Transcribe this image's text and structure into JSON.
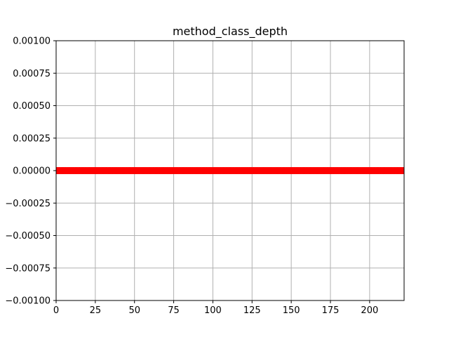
{
  "chart_data": {
    "type": "scatter",
    "title": "method_class_depth",
    "xlabel": "",
    "ylabel": "",
    "xlim": [
      0,
      222
    ],
    "ylim": [
      -0.001,
      0.001
    ],
    "x_ticks": [
      {
        "value": 0,
        "label": "0"
      },
      {
        "value": 25,
        "label": "25"
      },
      {
        "value": 50,
        "label": "50"
      },
      {
        "value": 75,
        "label": "75"
      },
      {
        "value": 100,
        "label": "100"
      },
      {
        "value": 125,
        "label": "125"
      },
      {
        "value": 150,
        "label": "150"
      },
      {
        "value": 175,
        "label": "175"
      },
      {
        "value": 200,
        "label": "200"
      }
    ],
    "y_ticks": [
      {
        "value": 0.001,
        "label": "0.00100"
      },
      {
        "value": 0.00075,
        "label": "0.00075"
      },
      {
        "value": 0.0005,
        "label": "0.00050"
      },
      {
        "value": 0.00025,
        "label": "0.00025"
      },
      {
        "value": 0,
        "label": "0.00000"
      },
      {
        "value": -0.00025,
        "label": "−0.00025"
      },
      {
        "value": -0.0005,
        "label": "−0.00050"
      },
      {
        "value": -0.00075,
        "label": "−0.00075"
      },
      {
        "value": -0.001,
        "label": "−0.00100"
      }
    ],
    "grid": true,
    "legend": "none",
    "series": [
      {
        "color": "#ff0000",
        "marker": "circle",
        "x_start": 0,
        "x_end": 222,
        "x_step": 1,
        "y": 0
      }
    ]
  }
}
